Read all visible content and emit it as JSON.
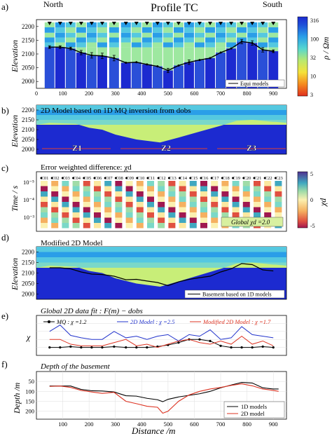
{
  "figure": {
    "title": "Profile TC",
    "north": "North",
    "south": "South",
    "panel_letters": [
      "a)",
      "b)",
      "c)",
      "d)",
      "e)",
      "f)"
    ],
    "colorbar_rho": {
      "label": "ρ / Ωm",
      "ticks": [
        "316",
        "100",
        "32",
        "10",
        "3"
      ]
    },
    "colorbar_chi": {
      "label": "χd",
      "ticks": [
        "5",
        "",
        "0",
        "",
        "-5"
      ]
    },
    "colors": {
      "blue_line": "#2233cc",
      "red_line": "#dd3322",
      "black_line": "#000000"
    }
  },
  "chart_data": [
    {
      "panel": "a)",
      "type": "heatmap",
      "ylabel": "Elevation",
      "ylim": [
        1975,
        2225
      ],
      "yticks": [
        "2200",
        "2150",
        "2100",
        "2050",
        "2000"
      ],
      "xlim": [
        0,
        950
      ],
      "xticks": [
        "0",
        "100",
        "200",
        "300",
        "400",
        "500",
        "600",
        "700",
        "800",
        "900"
      ],
      "legend": "Equi models",
      "station_x": [
        50,
        90,
        130,
        170,
        210,
        250,
        295,
        340,
        380,
        420,
        460,
        500,
        540,
        580,
        620,
        660,
        700,
        740,
        780,
        820,
        860,
        900
      ],
      "basement_depth_elev": [
        2125,
        2125,
        2120,
        2105,
        2095,
        2093,
        2085,
        2068,
        2070,
        2062,
        2055,
        2040,
        2058,
        2070,
        2078,
        2085,
        2105,
        2120,
        2145,
        2140,
        2115,
        2110
      ],
      "error_bars": [
        5,
        5,
        5,
        8,
        10,
        10,
        10,
        0,
        0,
        0,
        0,
        8,
        0,
        8,
        0,
        0,
        0,
        0,
        8,
        8,
        8,
        5
      ]
    },
    {
      "panel": "b)",
      "type": "heatmap",
      "title": "2D Model based on 1D MQ inversion from dobs",
      "ylabel": "Elevation",
      "yticks": [
        "2200",
        "2150",
        "2100",
        "2050",
        "2000"
      ],
      "zones": [
        "Z1",
        "Z2",
        "Z3"
      ]
    },
    {
      "panel": "c)",
      "type": "heatmap",
      "title": "Error weighted difference: χd",
      "ylabel": "Time / s",
      "yticks": [
        "10⁻⁵",
        "10⁻⁴",
        "10⁻³"
      ],
      "stations": [
        "C01",
        "C02",
        "C03",
        "C04",
        "C05",
        "C06",
        "C07",
        "C08",
        "C09",
        "C10",
        "C11",
        "C12",
        "C13",
        "C14",
        "C15",
        "C16",
        "C17",
        "C18",
        "C19",
        "C20",
        "C21",
        "C22",
        "C23"
      ],
      "legend": "Global χd =2.0"
    },
    {
      "panel": "d)",
      "type": "heatmap",
      "title": "Modified 2D Model",
      "ylabel": "Elevation",
      "yticks": [
        "2200",
        "2150",
        "2100",
        "2050",
        "2000"
      ],
      "legend": "Basement based on 1D models"
    },
    {
      "panel": "e)",
      "type": "line",
      "title": "Global 2D data fit : F(m) − dobs",
      "ylabel": "χ",
      "ylim": [
        0,
        5
      ],
      "x": [
        50,
        90,
        130,
        170,
        210,
        250,
        295,
        340,
        380,
        420,
        460,
        500,
        540,
        580,
        620,
        660,
        700,
        740,
        780,
        820,
        860,
        900
      ],
      "series": [
        {
          "name": "MQ : χ =1.2",
          "values": [
            1.0,
            1.0,
            1.1,
            1.0,
            1.0,
            1.0,
            1.1,
            1.0,
            1.0,
            1.0,
            1.1,
            1.3,
            1.6,
            2.0,
            2.0,
            1.8,
            1.2,
            1.0,
            1.0,
            1.0,
            1.1,
            1.0
          ]
        },
        {
          "name": "2D Model : χ =2.5",
          "values": [
            3.0,
            3.8,
            2.5,
            2.2,
            2.0,
            2.0,
            3.0,
            2.2,
            2.4,
            2.0,
            2.4,
            2.6,
            1.8,
            2.6,
            2.4,
            3.2,
            2.0,
            2.2,
            3.6,
            2.6,
            2.4,
            2.2
          ]
        },
        {
          "name": "Modified 2D Model : χ =1.7",
          "values": [
            2.0,
            2.0,
            1.4,
            1.2,
            1.2,
            1.2,
            1.6,
            2.0,
            1.2,
            1.4,
            1.0,
            1.4,
            1.8,
            2.0,
            1.6,
            1.4,
            1.8,
            1.4,
            2.4,
            1.4,
            1.8,
            1.2
          ]
        }
      ]
    },
    {
      "panel": "f)",
      "type": "line",
      "title": "Depth of the basement",
      "xlabel": "Distance /m",
      "ylabel": "Depth /m",
      "ylim": [
        0,
        240
      ],
      "yticks": [
        "50",
        "100",
        "150",
        "200"
      ],
      "xticks": [
        "100",
        "200",
        "300",
        "400",
        "500",
        "600",
        "700",
        "800",
        "900"
      ],
      "x": [
        50,
        90,
        130,
        170,
        210,
        250,
        295,
        340,
        380,
        420,
        460,
        480,
        500,
        540,
        580,
        620,
        660,
        700,
        740,
        780,
        820,
        860,
        900,
        920
      ],
      "series": [
        {
          "name": "1D models",
          "values": [
            73,
            73,
            73,
            90,
            97,
            98,
            103,
            122,
            124,
            135,
            142,
            152,
            140,
            128,
            120,
            112,
            100,
            82,
            68,
            55,
            58,
            82,
            88,
            88
          ]
        },
        {
          "name": "2D model",
          "values": [
            75,
            73,
            80,
            95,
            103,
            110,
            105,
            150,
            162,
            175,
            180,
            210,
            200,
            150,
            118,
            100,
            88,
            80,
            70,
            62,
            72,
            88,
            95,
            100
          ]
        }
      ]
    }
  ]
}
